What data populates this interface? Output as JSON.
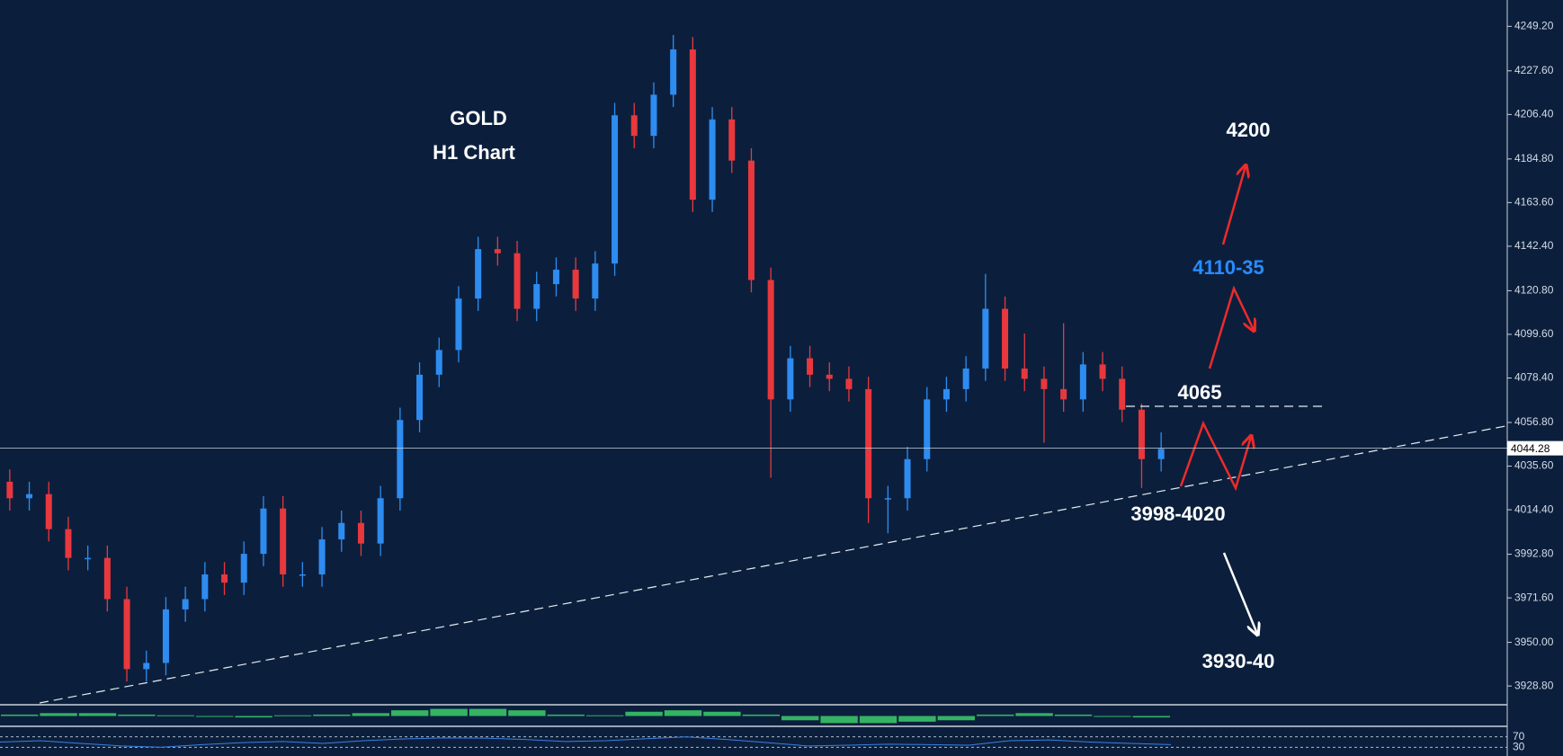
{
  "chart_data": {
    "type": "candlestick",
    "title": "GOLD",
    "subtitle": "H1 Chart",
    "annotations": [
      "4200",
      "4110-35",
      "4065",
      "3998-4020",
      "3930-40"
    ],
    "up_color": "#2e8cf0",
    "down_color": "#e8383d",
    "open": [
      4028,
      4020,
      4022,
      4005,
      3991,
      3991,
      3971,
      3937,
      3940,
      3966,
      3971,
      3983,
      3979,
      3993,
      4015,
      3983,
      3983,
      4000,
      4008,
      3998,
      4020,
      4058,
      4080,
      4092,
      4117,
      4141,
      4139,
      4112,
      4124,
      4131,
      4117,
      4134,
      4206,
      4196,
      4216,
      4238,
      4165,
      4204,
      4184,
      4126,
      4068,
      4088,
      4080,
      4078,
      4073,
      4020,
      4020,
      4039,
      4068,
      4073,
      4083,
      4112,
      4083,
      4078,
      4073,
      4068,
      4085,
      4078,
      4063,
      4039
    ],
    "high": [
      4034,
      4028,
      4028,
      4011,
      3997,
      3997,
      3977,
      3946,
      3972,
      3977,
      3989,
      3989,
      3999,
      4021,
      4021,
      3989,
      4006,
      4014,
      4014,
      4026,
      4064,
      4086,
      4098,
      4123,
      4147,
      4147,
      4145,
      4130,
      4137,
      4137,
      4140,
      4212,
      4212,
      4222,
      4245,
      4244,
      4210,
      4210,
      4190,
      4132,
      4094,
      4094,
      4086,
      4084,
      4079,
      4026,
      4045,
      4074,
      4079,
      4089,
      4129,
      4118,
      4100,
      4084,
      4105,
      4091,
      4091,
      4084,
      4066,
      4052
    ],
    "low": [
      4014,
      4014,
      3999,
      3985,
      3985,
      3965,
      3931,
      3931,
      3934,
      3960,
      3965,
      3973,
      3973,
      3987,
      3977,
      3977,
      3977,
      3994,
      3992,
      3992,
      4014,
      4052,
      4074,
      4086,
      4111,
      4133,
      4106,
      4106,
      4118,
      4111,
      4111,
      4128,
      4190,
      4190,
      4210,
      4159,
      4159,
      4178,
      4120,
      4030,
      4062,
      4074,
      4072,
      4067,
      4008,
      4003,
      4014,
      4033,
      4062,
      4067,
      4077,
      4077,
      4072,
      4047,
      4062,
      4062,
      4072,
      4057,
      4025,
      4033
    ],
    "close": [
      4020,
      4022,
      4005,
      3991,
      3991,
      3971,
      3937,
      3940,
      3966,
      3971,
      3983,
      3979,
      3993,
      4015,
      3983,
      3983,
      4000,
      4008,
      3998,
      4020,
      4058,
      4080,
      4092,
      4117,
      4141,
      4139,
      4112,
      4124,
      4131,
      4117,
      4134,
      4206,
      4196,
      4216,
      4238,
      4165,
      4204,
      4184,
      4126,
      4068,
      4088,
      4080,
      4078,
      4073,
      4020,
      4020,
      4039,
      4068,
      4073,
      4083,
      4112,
      4083,
      4078,
      4073,
      4068,
      4085,
      4078,
      4063,
      4039,
      4044
    ],
    "current_price": 4044.28,
    "ylim": [
      3921,
      4262
    ],
    "yticks": [
      {
        "value": 4249.2,
        "label": "4249.20"
      },
      {
        "value": 4227.6,
        "label": "4227.60"
      },
      {
        "value": 4206.4,
        "label": "4206.40"
      },
      {
        "value": 4184.8,
        "label": "4184.80"
      },
      {
        "value": 4163.6,
        "label": "4163.60"
      },
      {
        "value": 4142.4,
        "label": "4142.40"
      },
      {
        "value": 4120.8,
        "label": "4120.80"
      },
      {
        "value": 4099.6,
        "label": "4099.60"
      },
      {
        "value": 4078.4,
        "label": "4078.40"
      },
      {
        "value": 4056.8,
        "label": "4056.80"
      },
      {
        "value": 4035.6,
        "label": "4035.60"
      },
      {
        "value": 4014.4,
        "label": "4014.40"
      },
      {
        "value": 3992.8,
        "label": "3992.80"
      },
      {
        "value": 3971.6,
        "label": "3971.60"
      },
      {
        "value": 3950,
        "label": "3950.00"
      },
      {
        "value": 3928.8,
        "label": "3928.80"
      }
    ],
    "macd": {
      "color": "#3ccf6a",
      "ylim": [
        -6,
        6
      ],
      "values": [
        1,
        2,
        2,
        1,
        0.5,
        -0.5,
        -1,
        0.5,
        1,
        2,
        4,
        5,
        5,
        4,
        1,
        0.5,
        3,
        4,
        3,
        1,
        -3,
        -5,
        -5,
        -4,
        -3,
        1,
        2,
        1,
        -0.5,
        -1
      ]
    },
    "rsi": {
      "color": "#3d7fe0",
      "ylim": [
        0,
        100
      ],
      "yticks": [
        70,
        30
      ],
      "values": [
        50,
        55,
        45,
        35,
        30,
        40,
        48,
        52,
        45,
        55,
        62,
        66,
        65,
        60,
        52,
        55,
        63,
        70,
        60,
        48,
        35,
        38,
        42,
        40,
        38,
        55,
        58,
        50,
        45,
        40
      ]
    }
  }
}
